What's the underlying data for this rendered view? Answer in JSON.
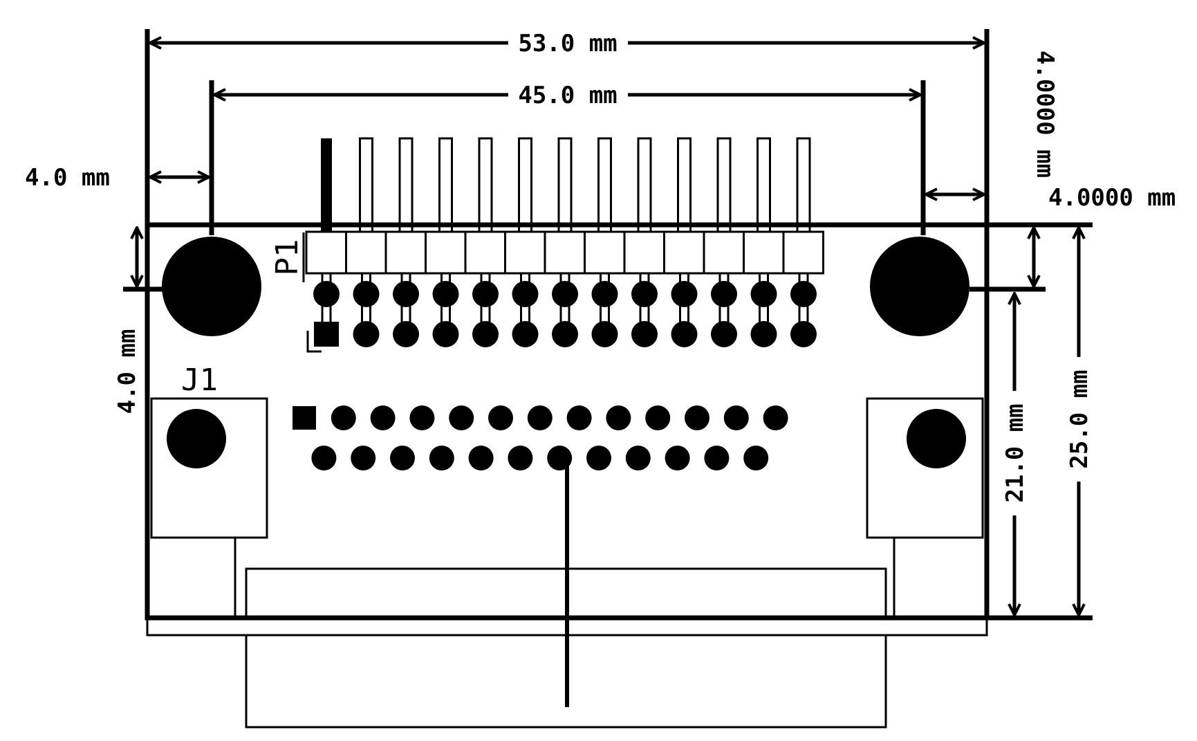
{
  "colors": {
    "ink": "#000000",
    "paper": "#ffffff"
  },
  "dimensions": {
    "width_53": "53.0 mm",
    "width_45": "45.0 mm",
    "left_offset": "4.0 mm",
    "right_offset_h": "4.0000 mm",
    "right_offset_v": "4.0000 mm",
    "left_vertical": "4.0 mm",
    "height_21": "21.0 mm",
    "height_25": "25.0 mm"
  },
  "labels": {
    "header_ref": "P1",
    "connector_ref": "J1"
  },
  "pins": {
    "header_columns": 13,
    "db25_top_row": 13,
    "db25_bottom_row": 12
  }
}
